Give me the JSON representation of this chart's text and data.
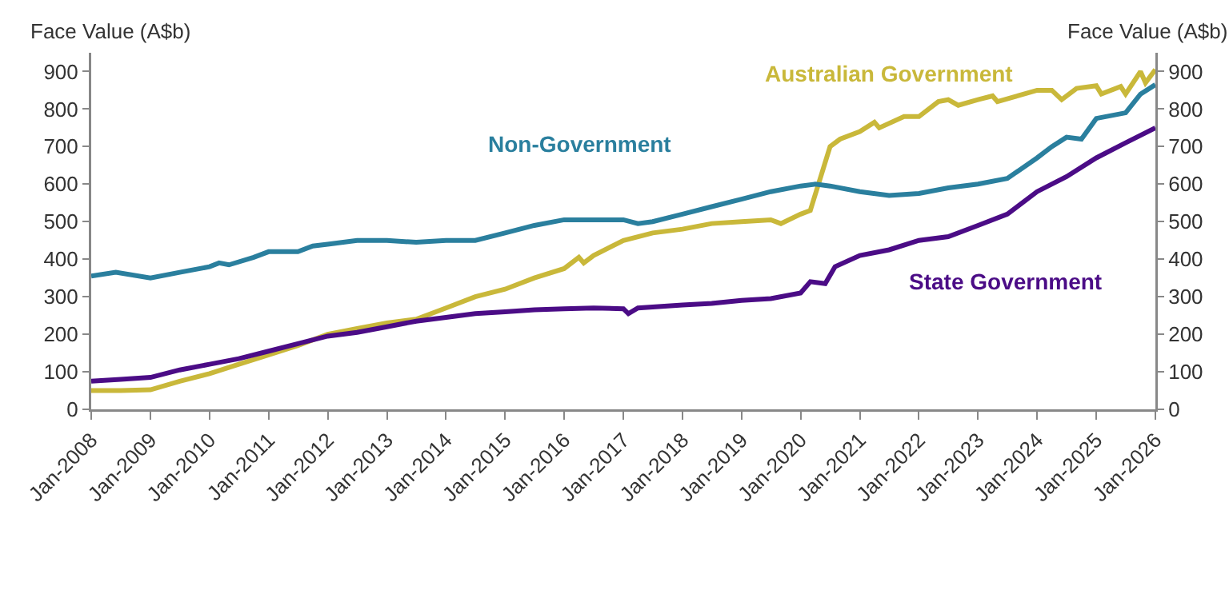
{
  "chart_data": {
    "type": "line",
    "ylabel": "Face Value (A$b)",
    "y2label": "Face Value (A$b)",
    "xlim": [
      "2008-01",
      "2026-01"
    ],
    "xticks": [
      {
        "value": "2008-01",
        "label": "Jan-2008"
      },
      {
        "value": "2009-01",
        "label": "Jan-2009"
      },
      {
        "value": "2010-01",
        "label": "Jan-2010"
      },
      {
        "value": "2011-01",
        "label": "Jan-2011"
      },
      {
        "value": "2012-01",
        "label": "Jan-2012"
      },
      {
        "value": "2013-01",
        "label": "Jan-2013"
      },
      {
        "value": "2014-01",
        "label": "Jan-2014"
      },
      {
        "value": "2015-01",
        "label": "Jan-2015"
      },
      {
        "value": "2016-01",
        "label": "Jan-2016"
      },
      {
        "value": "2017-01",
        "label": "Jan-2017"
      },
      {
        "value": "2018-01",
        "label": "Jan-2018"
      },
      {
        "value": "2019-01",
        "label": "Jan-2019"
      },
      {
        "value": "2020-01",
        "label": "Jan-2020"
      },
      {
        "value": "2021-01",
        "label": "Jan-2021"
      },
      {
        "value": "2022-01",
        "label": "Jan-2022"
      },
      {
        "value": "2023-01",
        "label": "Jan-2023"
      },
      {
        "value": "2024-01",
        "label": "Jan-2024"
      },
      {
        "value": "2025-01",
        "label": "Jan-2025"
      },
      {
        "value": "2026-01",
        "label": "Jan-2026"
      }
    ],
    "ylim": [
      0,
      950
    ],
    "yticks": [
      0,
      100,
      200,
      300,
      400,
      500,
      600,
      700,
      800,
      900
    ],
    "y2lim": [
      0,
      950
    ],
    "y2ticks": [
      0,
      100,
      200,
      300,
      400,
      500,
      600,
      700,
      800,
      900
    ],
    "grid": false,
    "legend": false,
    "marker": "none",
    "line_style": "solid",
    "series": [
      {
        "name": "Australian Government",
        "color": "#c9b83a",
        "x": [
          "2008-01",
          "2008-07",
          "2009-01",
          "2009-07",
          "2010-01",
          "2010-07",
          "2011-01",
          "2011-07",
          "2012-01",
          "2012-07",
          "2013-01",
          "2013-07",
          "2014-01",
          "2014-07",
          "2015-01",
          "2015-07",
          "2016-01",
          "2016-04",
          "2016-05",
          "2016-07",
          "2017-01",
          "2017-07",
          "2018-01",
          "2018-07",
          "2019-01",
          "2019-07",
          "2019-09",
          "2020-01",
          "2020-03",
          "2020-07",
          "2020-09",
          "2021-01",
          "2021-04",
          "2021-05",
          "2021-10",
          "2022-01",
          "2022-05",
          "2022-07",
          "2022-09",
          "2023-01",
          "2023-04",
          "2023-05",
          "2024-01",
          "2024-04",
          "2024-06",
          "2024-09",
          "2025-01",
          "2025-02",
          "2025-06",
          "2025-07",
          "2025-10",
          "2025-11",
          "2026-01"
        ],
        "values": [
          50,
          50,
          52,
          75,
          95,
          120,
          145,
          170,
          200,
          215,
          230,
          240,
          270,
          300,
          320,
          350,
          375,
          405,
          390,
          410,
          450,
          470,
          480,
          495,
          500,
          505,
          495,
          520,
          530,
          700,
          720,
          740,
          765,
          750,
          780,
          780,
          820,
          825,
          810,
          825,
          835,
          820,
          850,
          850,
          825,
          855,
          862,
          840,
          860,
          840,
          900,
          870,
          905
        ]
      },
      {
        "name": "Non-Government",
        "color": "#2a7f9e",
        "x": [
          "2008-01",
          "2008-06",
          "2009-01",
          "2009-07",
          "2010-01",
          "2010-03",
          "2010-05",
          "2010-10",
          "2011-01",
          "2011-07",
          "2011-10",
          "2012-01",
          "2012-07",
          "2013-01",
          "2013-07",
          "2014-01",
          "2014-07",
          "2015-01",
          "2015-07",
          "2016-01",
          "2016-07",
          "2017-01",
          "2017-04",
          "2017-07",
          "2018-01",
          "2018-07",
          "2019-01",
          "2019-07",
          "2020-01",
          "2020-04",
          "2020-07",
          "2021-01",
          "2021-07",
          "2022-01",
          "2022-07",
          "2023-01",
          "2023-07",
          "2024-01",
          "2024-04",
          "2024-07",
          "2024-10",
          "2025-01",
          "2025-07",
          "2025-10",
          "2026-01"
        ],
        "values": [
          355,
          365,
          350,
          365,
          380,
          390,
          385,
          405,
          420,
          420,
          435,
          440,
          450,
          450,
          445,
          450,
          450,
          470,
          490,
          505,
          505,
          505,
          495,
          500,
          520,
          540,
          560,
          580,
          595,
          600,
          595,
          580,
          570,
          575,
          590,
          600,
          615,
          670,
          700,
          725,
          720,
          775,
          790,
          840,
          865
        ]
      },
      {
        "name": "State Government",
        "color": "#4b0c86",
        "x": [
          "2008-01",
          "2008-07",
          "2009-01",
          "2009-07",
          "2010-01",
          "2010-07",
          "2011-01",
          "2011-07",
          "2012-01",
          "2012-07",
          "2013-01",
          "2013-07",
          "2014-01",
          "2014-07",
          "2015-01",
          "2015-07",
          "2016-01",
          "2016-07",
          "2017-01",
          "2017-02",
          "2017-04",
          "2018-01",
          "2018-07",
          "2019-01",
          "2019-07",
          "2020-01",
          "2020-03",
          "2020-06",
          "2020-08",
          "2021-01",
          "2021-07",
          "2022-01",
          "2022-07",
          "2023-01",
          "2023-07",
          "2024-01",
          "2024-07",
          "2025-01",
          "2025-07",
          "2026-01"
        ],
        "values": [
          75,
          80,
          85,
          105,
          120,
          135,
          155,
          175,
          195,
          205,
          220,
          235,
          245,
          255,
          260,
          265,
          268,
          270,
          268,
          255,
          270,
          278,
          282,
          290,
          295,
          310,
          340,
          335,
          380,
          410,
          425,
          450,
          460,
          490,
          520,
          580,
          620,
          670,
          710,
          750
        ]
      }
    ]
  }
}
